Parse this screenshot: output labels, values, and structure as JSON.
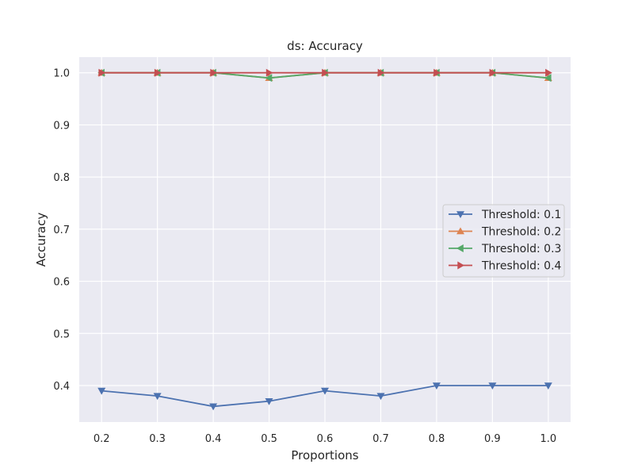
{
  "chart_data": {
    "type": "line",
    "title": "ds: Accuracy",
    "xlabel": "Proportions",
    "ylabel": "Accuracy",
    "x": [
      0.2,
      0.3,
      0.4,
      0.5,
      0.6,
      0.7,
      0.8,
      0.9,
      1.0
    ],
    "x_tick_labels": [
      "0.2",
      "0.3",
      "0.4",
      "0.5",
      "0.6",
      "0.7",
      "0.8",
      "0.9",
      "1.0"
    ],
    "y_ticks": [
      0.4,
      0.5,
      0.6,
      0.7,
      0.8,
      0.9,
      1.0
    ],
    "y_tick_labels": [
      "0.4",
      "0.5",
      "0.6",
      "0.7",
      "0.8",
      "0.9",
      "1.0"
    ],
    "xlim": [
      0.16,
      1.04
    ],
    "ylim": [
      0.33,
      1.03
    ],
    "grid": true,
    "legend_position": "center-right",
    "background_color": "#eaeaf2",
    "series": [
      {
        "name": "Threshold: 0.1",
        "color": "#4c72b0",
        "marker": "triangle-down",
        "values": [
          0.39,
          0.38,
          0.36,
          0.37,
          0.39,
          0.38,
          0.4,
          0.4,
          0.4
        ]
      },
      {
        "name": "Threshold: 0.2",
        "color": "#dd8452",
        "marker": "triangle-up",
        "values": [
          1.0,
          1.0,
          1.0,
          0.99,
          1.0,
          1.0,
          1.0,
          1.0,
          0.99
        ]
      },
      {
        "name": "Threshold: 0.3",
        "color": "#55a868",
        "marker": "triangle-left",
        "values": [
          1.0,
          1.0,
          1.0,
          0.99,
          1.0,
          1.0,
          1.0,
          1.0,
          0.99
        ]
      },
      {
        "name": "Threshold: 0.4",
        "color": "#c44e52",
        "marker": "triangle-right",
        "values": [
          1.0,
          1.0,
          1.0,
          1.0,
          1.0,
          1.0,
          1.0,
          1.0,
          1.0
        ]
      }
    ]
  }
}
